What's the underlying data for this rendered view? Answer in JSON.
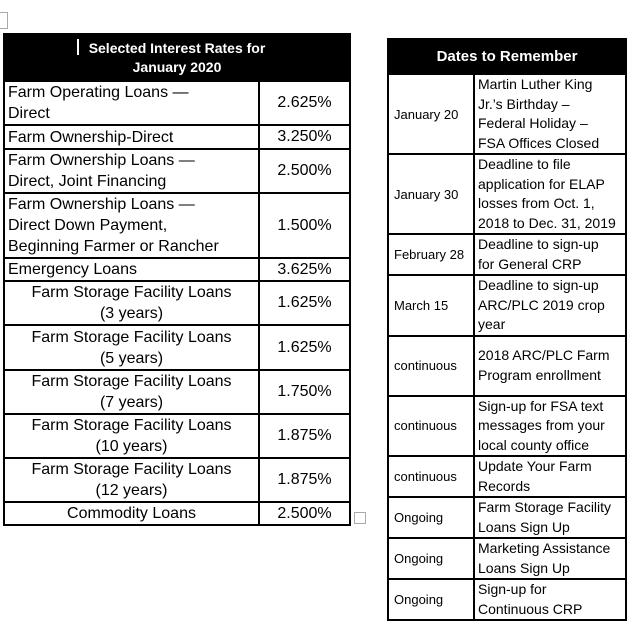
{
  "colors": {
    "page_bg": "#ffffff",
    "header_bg": "#000000",
    "header_text": "#ffffff",
    "border": "#000000",
    "handle_border": "#a9a9a9"
  },
  "interest_table": {
    "title_line1": "Selected Interest Rates for",
    "title_line2": "January 2020",
    "rows": [
      {
        "label": "Farm Operating Loans —\nDirect",
        "rate": "2.625%",
        "align": "left"
      },
      {
        "label": "Farm Ownership-Direct",
        "rate": "3.250%",
        "align": "left"
      },
      {
        "label": "Farm Ownership Loans —\nDirect, Joint Financing",
        "rate": "2.500%",
        "align": "left"
      },
      {
        "label": "Farm Ownership Loans —\nDirect Down Payment,\nBeginning Farmer or Rancher",
        "rate": "1.500%",
        "align": "left"
      },
      {
        "label": "Emergency Loans",
        "rate": "3.625%",
        "align": "left"
      },
      {
        "label": "Farm Storage Facility Loans\n(3 years)",
        "rate": "1.625%",
        "align": "center"
      },
      {
        "label": "Farm Storage Facility Loans\n(5 years)",
        "rate": "1.625%",
        "align": "center"
      },
      {
        "label": "Farm Storage Facility Loans\n(7 years)",
        "rate": "1.750%",
        "align": "center"
      },
      {
        "label": "Farm Storage Facility Loans\n(10 years)",
        "rate": "1.875%",
        "align": "center"
      },
      {
        "label": "Farm Storage Facility Loans\n(12 years)",
        "rate": "1.875%",
        "align": "center"
      },
      {
        "label": "Commodity Loans",
        "rate": "2.500%",
        "align": "center"
      }
    ]
  },
  "dates_table": {
    "title": "Dates to Remember",
    "rows": [
      {
        "date": "January 20",
        "description": "Martin Luther King\nJr.’s Birthday –\nFederal Holiday –\nFSA Offices Closed"
      },
      {
        "date": "January 30",
        "description": "Deadline to file\napplication for ELAP\nlosses from Oct. 1,\n2018 to Dec. 31, 2019"
      },
      {
        "date": "February 28",
        "description": "Deadline to sign-up\nfor General CRP"
      },
      {
        "date": "March 15",
        "description": "Deadline to sign-up\nARC/PLC 2019 crop\nyear"
      },
      {
        "date": "continuous",
        "description": "2018 ARC/PLC Farm\nProgram enrollment"
      },
      {
        "date": "continuous",
        "description": "Sign-up for FSA text\nmessages from your\nlocal county office"
      },
      {
        "date": "continuous",
        "description": "Update Your Farm\nRecords"
      },
      {
        "date": "Ongoing",
        "description": "Farm Storage Facility\nLoans Sign Up"
      },
      {
        "date": "Ongoing",
        "description": "Marketing Assistance\nLoans Sign Up"
      },
      {
        "date": "Ongoing",
        "description": "Sign-up for\nContinuous CRP"
      }
    ]
  }
}
